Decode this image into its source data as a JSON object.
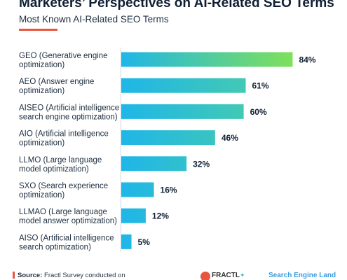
{
  "header": {
    "title": "Marketers’ Perspectives on AI-Related SEO Terms",
    "subtitle": "Most Known AI-Related SEO Terms"
  },
  "footer": {
    "source_label": "Source:",
    "source_text": "Fractl Survey conducted on",
    "logo_a": "FRACTL",
    "logo_b": "Search Engine Land"
  },
  "colors": {
    "bar_start": "#1fb6e8",
    "bar_end": "#7fe05a",
    "accent": "#e8563d"
  },
  "chart_data": {
    "type": "bar",
    "orientation": "horizontal",
    "categories": [
      "GEO (Generative engine optimization)",
      "AEO (Answer engine optimization)",
      "AISEO (Artificial intelligence search engine optimization)",
      "AIO (Artificial intelligence optimization)",
      "LLMO (Large language model optimization)",
      "SXO (Search experience optimization)",
      "LLMAO (Large language model answer optimization)",
      "AISO (Artificial intelligence search optimization)"
    ],
    "category_lines": [
      [
        "GEO (Generative engine",
        "optimization)"
      ],
      [
        "AEO (Answer engine",
        "optimization)"
      ],
      [
        "AISEO (Artificial intelligence",
        "search engine optimization)"
      ],
      [
        "AIO (Artificial intelligence",
        "optimization)"
      ],
      [
        "LLMO (Large language",
        "model optimization)"
      ],
      [
        "SXO (Search experience",
        "optimization)"
      ],
      [
        "LLMAO (Large language",
        "model answer optimization)"
      ],
      [
        "AISO (Artificial intelligence",
        "search optimization)"
      ]
    ],
    "values": [
      84,
      61,
      60,
      46,
      32,
      16,
      12,
      5
    ],
    "value_labels": [
      "84%",
      "61%",
      "60%",
      "46%",
      "32%",
      "16%",
      "12%",
      "5%"
    ],
    "xlim": [
      0,
      100
    ],
    "grid": false,
    "legend": "none"
  }
}
